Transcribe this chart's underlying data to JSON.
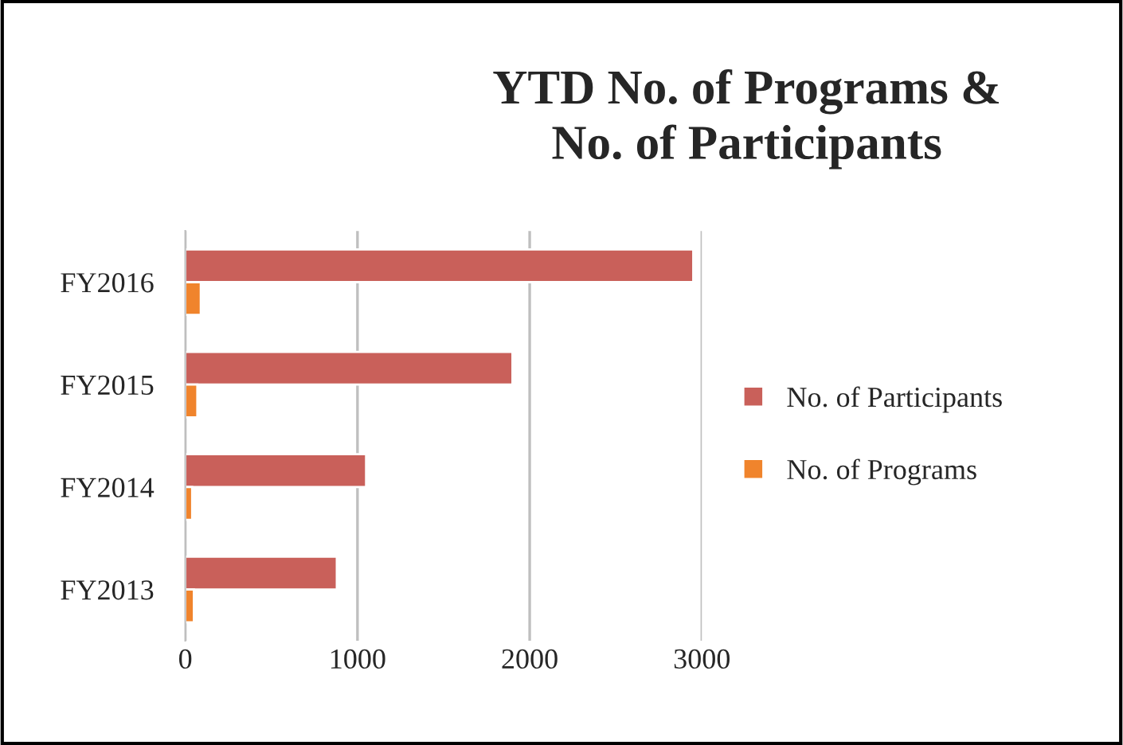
{
  "chart_data": {
    "type": "bar",
    "orientation": "horizontal",
    "title": "YTD No. of Programs &\nNo. of Participants",
    "categories": [
      "FY2016",
      "FY2015",
      "FY2014",
      "FY2013"
    ],
    "series": [
      {
        "name": "No. of Participants",
        "color": "#c9605a",
        "values": [
          2950,
          1900,
          1050,
          880
        ]
      },
      {
        "name": "No. of Programs",
        "color": "#f0842c",
        "values": [
          90,
          70,
          40,
          50
        ]
      }
    ],
    "xlim": [
      0,
      3000
    ],
    "xticks": [
      0,
      1000,
      2000,
      3000
    ],
    "grid": "x",
    "legend": "right"
  }
}
